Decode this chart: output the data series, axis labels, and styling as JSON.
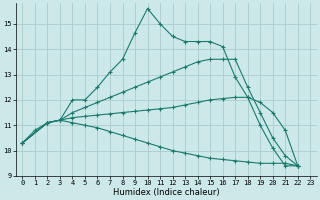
{
  "xlabel": "Humidex (Indice chaleur)",
  "background_color": "#cce8e8",
  "grid_color": "#aacccc",
  "line_color": "#1a7a6e",
  "xlim": [
    -0.5,
    23.5
  ],
  "ylim": [
    9,
    15.8
  ],
  "yticks": [
    9,
    10,
    11,
    12,
    13,
    14,
    15
  ],
  "xticks": [
    0,
    1,
    2,
    3,
    4,
    5,
    6,
    7,
    8,
    9,
    10,
    11,
    12,
    13,
    14,
    15,
    16,
    17,
    18,
    19,
    20,
    21,
    22,
    23
  ],
  "line1_x": [
    0,
    1,
    2,
    3,
    4,
    5,
    6,
    7,
    8,
    9,
    10,
    11,
    12,
    13,
    14,
    15,
    16,
    17,
    18,
    19,
    20,
    21,
    22
  ],
  "line1_y": [
    10.3,
    10.8,
    11.1,
    11.2,
    12.0,
    12.0,
    12.5,
    13.1,
    13.6,
    14.65,
    15.6,
    15.0,
    14.5,
    14.3,
    14.3,
    14.3,
    14.1,
    12.9,
    12.1,
    11.0,
    10.1,
    9.4,
    9.4
  ],
  "line2_x": [
    0,
    2,
    3,
    4,
    5,
    6,
    7,
    8,
    9,
    10,
    11,
    12,
    13,
    14,
    15,
    16,
    17,
    18,
    19,
    20,
    21,
    22
  ],
  "line2_y": [
    10.3,
    11.1,
    11.2,
    11.5,
    11.7,
    11.9,
    12.1,
    12.3,
    12.5,
    12.7,
    12.9,
    13.1,
    13.3,
    13.5,
    13.6,
    13.6,
    13.6,
    12.5,
    11.5,
    10.5,
    9.8,
    9.4
  ],
  "line3_x": [
    0,
    2,
    3,
    4,
    5,
    6,
    7,
    8,
    9,
    10,
    11,
    12,
    13,
    14,
    15,
    16,
    17,
    18,
    19,
    20,
    21,
    22
  ],
  "line3_y": [
    10.3,
    11.1,
    11.2,
    11.3,
    11.35,
    11.4,
    11.45,
    11.5,
    11.55,
    11.6,
    11.65,
    11.7,
    11.8,
    11.9,
    12.0,
    12.05,
    12.1,
    12.1,
    11.9,
    11.5,
    10.8,
    9.4
  ],
  "line4_x": [
    0,
    2,
    3,
    4,
    5,
    6,
    7,
    8,
    9,
    10,
    11,
    12,
    13,
    14,
    15,
    16,
    17,
    18,
    19,
    20,
    21,
    22
  ],
  "line4_y": [
    10.3,
    11.1,
    11.2,
    11.1,
    11.0,
    10.9,
    10.75,
    10.6,
    10.45,
    10.3,
    10.15,
    10.0,
    9.9,
    9.8,
    9.7,
    9.65,
    9.6,
    9.55,
    9.5,
    9.5,
    9.5,
    9.4
  ]
}
